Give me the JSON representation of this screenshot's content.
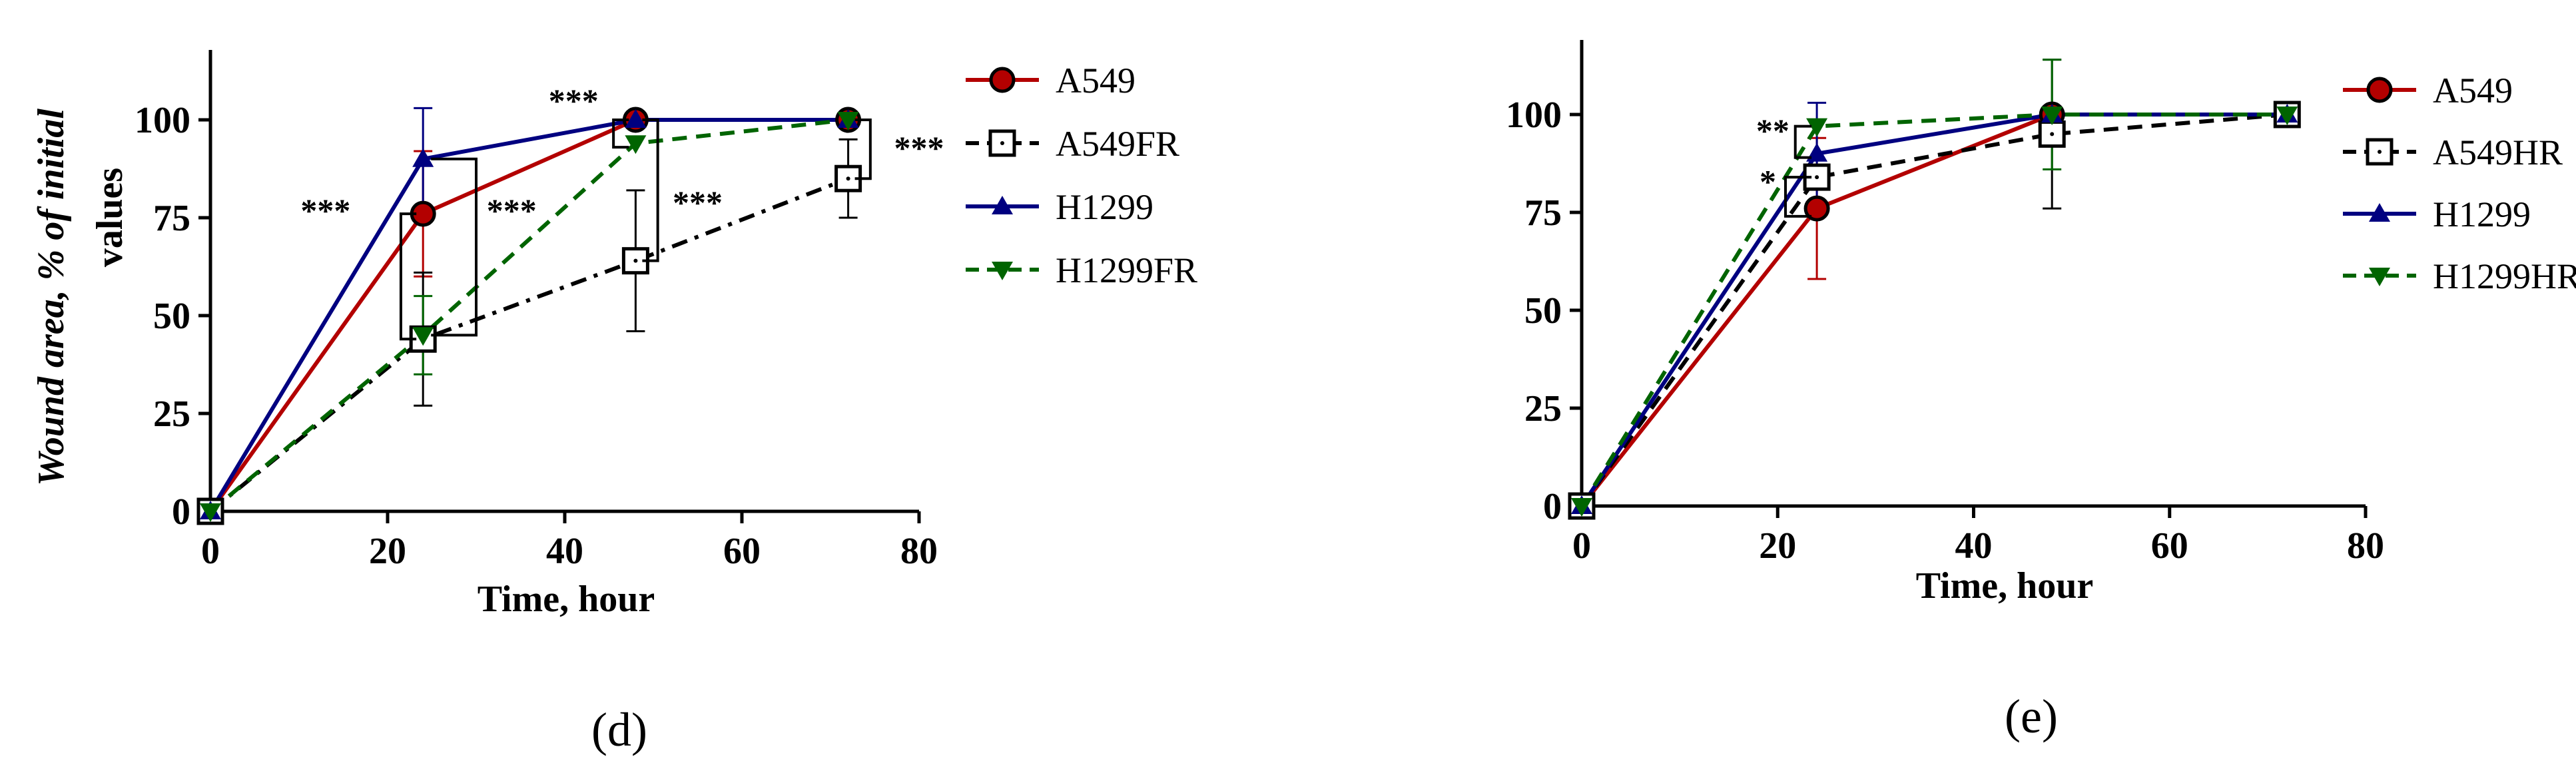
{
  "chart_data": [
    {
      "type": "line",
      "panel_label": "(d)",
      "xlabel": "Time, hour",
      "ylabel": "Wound area, % of initial values",
      "xlim": [
        0,
        80
      ],
      "ylim": [
        0,
        120
      ],
      "xticks": [
        0,
        20,
        40,
        60,
        80
      ],
      "yticks": [
        0,
        25,
        50,
        75,
        100
      ],
      "legend_position": "right",
      "x": [
        0,
        24,
        48,
        72
      ],
      "series": [
        {
          "name": "A549",
          "values": [
            0,
            76,
            100,
            100
          ],
          "errors": [
            0,
            16,
            0,
            0
          ],
          "color": "#b30000",
          "dash": "solid",
          "marker": "circle"
        },
        {
          "name": "A549FR",
          "values": [
            0,
            44,
            64,
            85
          ],
          "errors": [
            0,
            17,
            18,
            10
          ],
          "color": "#000000",
          "dash": "dashdot",
          "marker": "square-open"
        },
        {
          "name": "H1299",
          "values": [
            0,
            90,
            100,
            100
          ],
          "errors": [
            0,
            13,
            0,
            0
          ],
          "color": "#000080",
          "dash": "solid",
          "marker": "triangle-up"
        },
        {
          "name": "H1299FR",
          "values": [
            0,
            45,
            94,
            100
          ],
          "errors": [
            0,
            10,
            0,
            0
          ],
          "color": "#006400",
          "dash": "dashed",
          "marker": "triangle-down"
        }
      ],
      "annotations": [
        {
          "text": "***",
          "x": 13,
          "y": 74
        },
        {
          "text": "***",
          "x": 34,
          "y": 74
        },
        {
          "text": "***",
          "x": 41,
          "y": 102
        },
        {
          "text": "***",
          "x": 55,
          "y": 76
        },
        {
          "text": "***",
          "x": 80,
          "y": 90
        }
      ]
    },
    {
      "type": "line",
      "panel_label": "(e)",
      "xlabel": "Time, hour",
      "ylabel": "",
      "xlim": [
        0,
        80
      ],
      "ylim": [
        0,
        120
      ],
      "xticks": [
        0,
        20,
        40,
        60,
        80
      ],
      "yticks": [
        0,
        25,
        50,
        75,
        100
      ],
      "legend_position": "right",
      "x": [
        0,
        24,
        48,
        72
      ],
      "series": [
        {
          "name": "A549",
          "values": [
            0,
            76,
            100,
            100
          ],
          "errors": [
            0,
            18,
            0,
            0
          ],
          "color": "#b30000",
          "dash": "solid",
          "marker": "circle"
        },
        {
          "name": "A549HR",
          "values": [
            0,
            84,
            95,
            100
          ],
          "errors": [
            0,
            0,
            19,
            0
          ],
          "color": "#000000",
          "dash": "dashed",
          "marker": "square-open"
        },
        {
          "name": "H1299",
          "values": [
            0,
            90,
            100,
            100
          ],
          "errors": [
            0,
            13,
            0,
            0
          ],
          "color": "#000080",
          "dash": "solid",
          "marker": "triangle-up"
        },
        {
          "name": "H1299HR",
          "values": [
            0,
            97,
            100,
            100
          ],
          "errors": [
            0,
            0,
            14,
            0
          ],
          "color": "#006400",
          "dash": "dashed",
          "marker": "triangle-down"
        }
      ],
      "annotations": [
        {
          "text": "**",
          "x": 19.5,
          "y": 93
        },
        {
          "text": "*",
          "x": 19,
          "y": 80
        }
      ]
    }
  ]
}
